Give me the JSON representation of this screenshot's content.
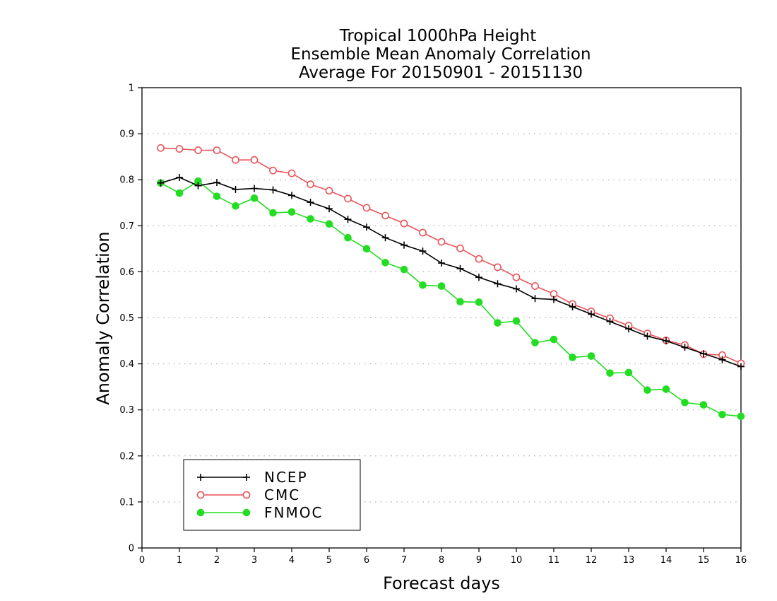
{
  "chart_data": {
    "type": "line",
    "title_lines": [
      "Tropical 1000hPa Height",
      "Ensemble Mean Anomaly Correlation",
      "Average For 20150901 - 20151130"
    ],
    "xlabel": "Forecast days",
    "ylabel": "Anomaly Correlation",
    "xlim": [
      0,
      16
    ],
    "ylim": [
      0,
      1
    ],
    "x_ticks": [
      "0",
      "1",
      "2",
      "3",
      "4",
      "5",
      "6",
      "7",
      "8",
      "9",
      "10",
      "11",
      "12",
      "13",
      "14",
      "15",
      "16"
    ],
    "y_ticks": [
      "0",
      "0.1",
      "0.2",
      "0.3",
      "0.4",
      "0.5",
      "0.6",
      "0.7",
      "0.8",
      "0.9",
      "1"
    ],
    "grid": "dotted-horizontal",
    "legend_position": "bottom-left",
    "x": [
      0.5,
      1,
      1.5,
      2,
      2.5,
      3,
      3.5,
      4,
      4.5,
      5,
      5.5,
      6,
      6.5,
      7,
      7.5,
      8,
      8.5,
      9,
      9.5,
      10,
      10.5,
      11,
      11.5,
      12,
      12.5,
      13,
      13.5,
      14,
      14.5,
      15,
      15.5,
      16
    ],
    "series": [
      {
        "name": "NCEP",
        "color": "#000000",
        "marker": "plus",
        "values": [
          0.793,
          0.805,
          0.787,
          0.794,
          0.779,
          0.781,
          0.778,
          0.766,
          0.751,
          0.737,
          0.714,
          0.697,
          0.674,
          0.658,
          0.645,
          0.619,
          0.607,
          0.588,
          0.574,
          0.563,
          0.542,
          0.54,
          0.524,
          0.508,
          0.492,
          0.476,
          0.46,
          0.45,
          0.436,
          0.422,
          0.409,
          0.394
        ]
      },
      {
        "name": "CMC",
        "color": "#e8545a",
        "marker": "open-circle",
        "values": [
          0.869,
          0.867,
          0.864,
          0.864,
          0.843,
          0.843,
          0.82,
          0.814,
          0.79,
          0.776,
          0.759,
          0.739,
          0.722,
          0.705,
          0.685,
          0.665,
          0.651,
          0.628,
          0.61,
          0.588,
          0.569,
          0.552,
          0.53,
          0.514,
          0.499,
          0.483,
          0.466,
          0.451,
          0.441,
          0.421,
          0.419,
          0.401
        ]
      },
      {
        "name": "FNMOC",
        "color": "#22dd22",
        "marker": "filled-circle",
        "values": [
          0.793,
          0.771,
          0.797,
          0.764,
          0.743,
          0.76,
          0.728,
          0.73,
          0.715,
          0.704,
          0.674,
          0.65,
          0.62,
          0.605,
          0.571,
          0.569,
          0.535,
          0.534,
          0.489,
          0.493,
          0.446,
          0.453,
          0.414,
          0.417,
          0.38,
          0.381,
          0.343,
          0.345,
          0.316,
          0.311,
          0.29,
          0.286
        ]
      }
    ]
  }
}
